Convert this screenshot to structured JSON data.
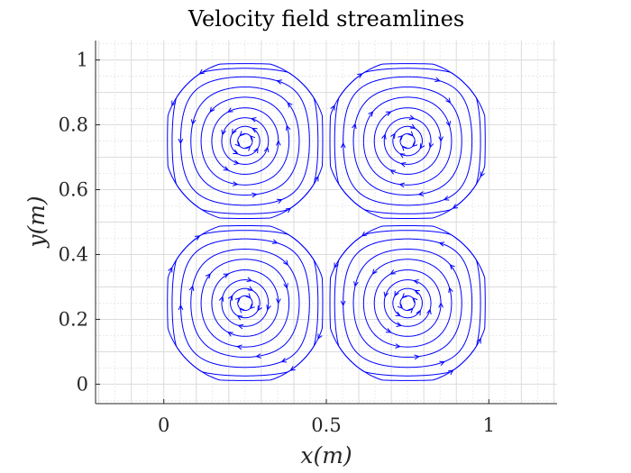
{
  "chart_data": {
    "type": "streamline",
    "title": "Velocity field streamlines",
    "xlabel": "x(m)",
    "ylabel": "y(m)",
    "xlim": [
      -0.21,
      1.21
    ],
    "ylim": [
      -0.06,
      1.06
    ],
    "xticks": [
      0,
      0.5,
      1
    ],
    "xtick_labels": [
      "0",
      "0.5",
      "1"
    ],
    "yticks": [
      0,
      0.2,
      0.4,
      0.6,
      0.8,
      1
    ],
    "ytick_labels": [
      "0",
      "0.2",
      "0.4",
      "0.6",
      "0.8",
      "1"
    ],
    "grid": true,
    "minor_grid": true,
    "line_color": "#0000ff",
    "domain_x": [
      0,
      1
    ],
    "domain_y": [
      0,
      1
    ],
    "cells": [
      {
        "center": [
          0.25,
          0.75
        ],
        "rotation": "counterclockwise"
      },
      {
        "center": [
          0.75,
          0.75
        ],
        "rotation": "clockwise"
      },
      {
        "center": [
          0.25,
          0.25
        ],
        "rotation": "clockwise"
      },
      {
        "center": [
          0.75,
          0.25
        ],
        "rotation": "counterclockwise"
      }
    ],
    "contour_levels": [
      0.99,
      0.96,
      0.9,
      0.8,
      0.66,
      0.5,
      0.32,
      0.16,
      0.07
    ]
  }
}
